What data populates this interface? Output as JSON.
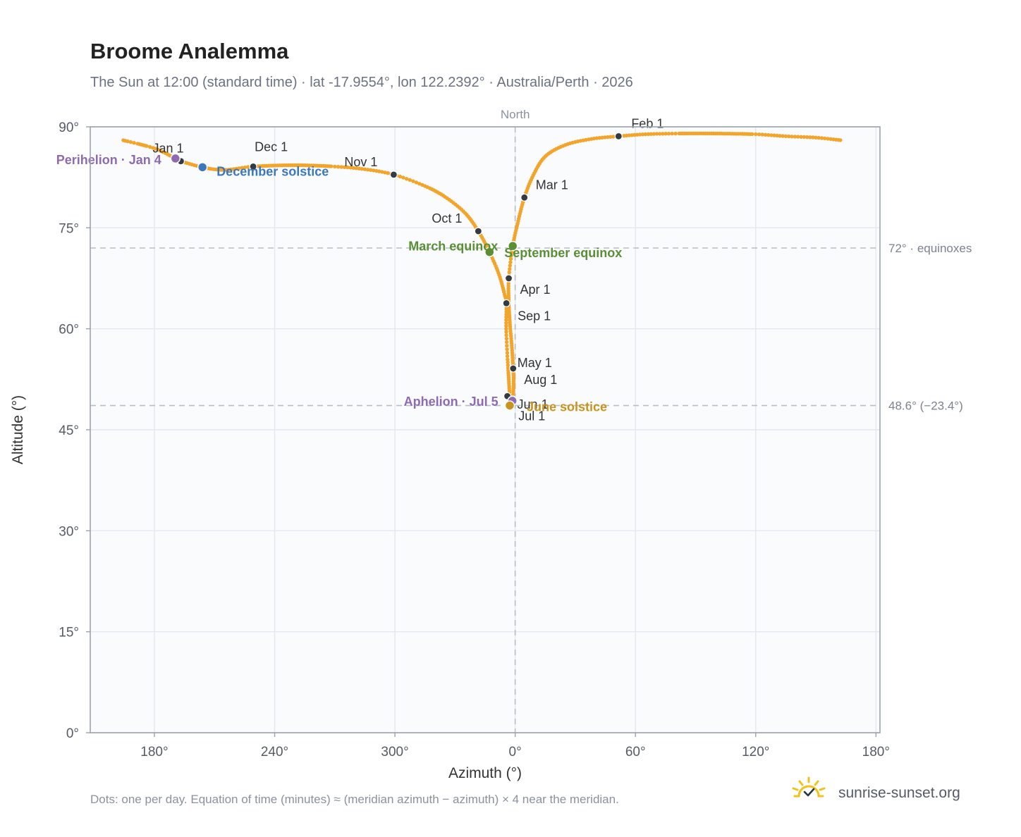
{
  "colors": {
    "analemma": "#f2a52a",
    "month_dot": "#333a44",
    "perihelion": "#8e6bb0",
    "aphelion": "#8e6bb0",
    "december_solstice": "#3b78bd",
    "june_solstice": "#c8941e",
    "equinox": "#5a8f35",
    "grid": "#e3e8ee",
    "plot_bg": "#f9fbfd",
    "axis_frame": "#9aa3ad",
    "ref_line": "#b8bec6",
    "brand_sun": "#f2c21b"
  },
  "chart_data": {
    "type": "scatter",
    "title": "Broome Analemma",
    "subtitle": "The Sun at 12:00 (standard time) · lat -17.9554°, lon 122.2392° · Australia/Perth · 2026",
    "xlabel": "Azimuth (°)",
    "ylabel": "Altitude (°)",
    "xlim": [
      148,
      182
    ],
    "ylim": [
      0,
      90
    ],
    "x_ticks": [
      {
        "value": 180,
        "label": "180°"
      },
      {
        "value": 240,
        "label": "240°"
      },
      {
        "value": 300,
        "label": "300°"
      },
      {
        "value": 360,
        "label": "0°"
      },
      {
        "value": 420,
        "label": "60°"
      },
      {
        "value": 480,
        "label": "120°"
      },
      {
        "value": 540,
        "label": "180°"
      }
    ],
    "y_ticks": [
      0,
      15,
      30,
      45,
      60,
      75,
      90
    ],
    "y_tick_labels": [
      "0°",
      "15°",
      "30°",
      "45°",
      "60°",
      "75°",
      "90°"
    ],
    "grid": true,
    "meridian": {
      "azimuth": 360,
      "label": "North"
    },
    "reference_lines": [
      {
        "altitude": 72.0,
        "label": "72° · equinoxes"
      },
      {
        "altitude": 48.6,
        "label": "48.6° (−23.4°)"
      }
    ],
    "month_markers": [
      {
        "label": "Jan 1",
        "azimuth": 193.2,
        "altitude": 84.9
      },
      {
        "label": "Feb 1",
        "azimuth": 411.6,
        "altitude": 88.6
      },
      {
        "label": "Mar 1",
        "azimuth": 364.6,
        "altitude": 79.5
      },
      {
        "label": "Apr 1",
        "azimuth": 356.8,
        "altitude": 67.5
      },
      {
        "label": "May 1",
        "azimuth": 359.0,
        "altitude": 54.1
      },
      {
        "label": "Jun 1",
        "azimuth": 356.1,
        "altitude": 50.0
      },
      {
        "label": "Jul 1",
        "azimuth": 357.4,
        "altitude": 48.7
      },
      {
        "label": "Aug 1",
        "azimuth": 358.8,
        "altitude": 49.5
      },
      {
        "label": "Sep 1",
        "azimuth": 355.6,
        "altitude": 63.8
      },
      {
        "label": "Oct 1",
        "azimuth": 341.6,
        "altitude": 74.5
      },
      {
        "label": "Nov 1",
        "azimuth": 299.4,
        "altitude": 82.9
      },
      {
        "label": "Dec 1",
        "azimuth": 229.3,
        "altitude": 84.1
      }
    ],
    "events": [
      {
        "label": "Perihelion · Jan 4",
        "azimuth": 190.5,
        "altitude": 85.3,
        "color": "#8e6bb0"
      },
      {
        "label": "December solstice",
        "azimuth": 204.0,
        "altitude": 84.0,
        "color": "#3b78bd"
      },
      {
        "label": "March equinox",
        "azimuth": 347.2,
        "altitude": 71.4,
        "color": "#5a8f35"
      },
      {
        "label": "September equinox",
        "azimuth": 358.8,
        "altitude": 72.3,
        "color": "#5a8f35"
      },
      {
        "label": "Aphelion · Jul 5",
        "azimuth": 358.6,
        "altitude": 49.3,
        "color": "#8e6bb0"
      },
      {
        "label": "June solstice",
        "azimuth": 357.3,
        "altitude": 48.6,
        "color": "#c8941e"
      }
    ],
    "daily_path": [
      [
        164.5,
        88.0
      ],
      [
        180.0,
        86.8
      ],
      [
        190.5,
        85.3
      ],
      [
        193.2,
        84.9
      ],
      [
        204.0,
        84.0
      ],
      [
        215.0,
        83.6
      ],
      [
        229.3,
        84.1
      ],
      [
        250.0,
        84.3
      ],
      [
        270.0,
        84.1
      ],
      [
        285.0,
        83.7
      ],
      [
        299.4,
        82.9
      ],
      [
        315.0,
        81.2
      ],
      [
        325.0,
        79.6
      ],
      [
        335.0,
        77.2
      ],
      [
        341.6,
        74.5
      ],
      [
        347.2,
        71.4
      ],
      [
        352.0,
        68.0
      ],
      [
        354.8,
        65.0
      ],
      [
        355.6,
        63.8
      ],
      [
        355.5,
        60.0
      ],
      [
        356.3,
        55.0
      ],
      [
        357.0,
        51.5
      ],
      [
        357.4,
        48.7
      ],
      [
        358.6,
        49.3
      ],
      [
        358.8,
        49.5
      ],
      [
        359.2,
        52.0
      ],
      [
        359.0,
        54.1
      ],
      [
        358.3,
        57.5
      ],
      [
        357.3,
        61.0
      ],
      [
        356.8,
        64.0
      ],
      [
        356.8,
        67.5
      ],
      [
        358.8,
        72.3
      ],
      [
        361.5,
        76.0
      ],
      [
        364.6,
        79.5
      ],
      [
        369.0,
        82.8
      ],
      [
        375.0,
        85.6
      ],
      [
        385.0,
        87.3
      ],
      [
        398.0,
        88.2
      ],
      [
        411.6,
        88.6
      ],
      [
        425.0,
        88.9
      ],
      [
        440.0,
        89.0
      ],
      [
        460.0,
        89.0
      ],
      [
        480.0,
        88.9
      ],
      [
        495.0,
        88.6
      ],
      [
        510.0,
        88.4
      ],
      [
        523.0,
        88.0
      ]
    ]
  },
  "footnote": "Dots: one per day. Equation of time (minutes) ≈ (meridian azimuth − azimuth) × 4 near the meridian.",
  "brand": {
    "name": "sunrise-sunset.org",
    "icon": "sun-check-icon"
  }
}
